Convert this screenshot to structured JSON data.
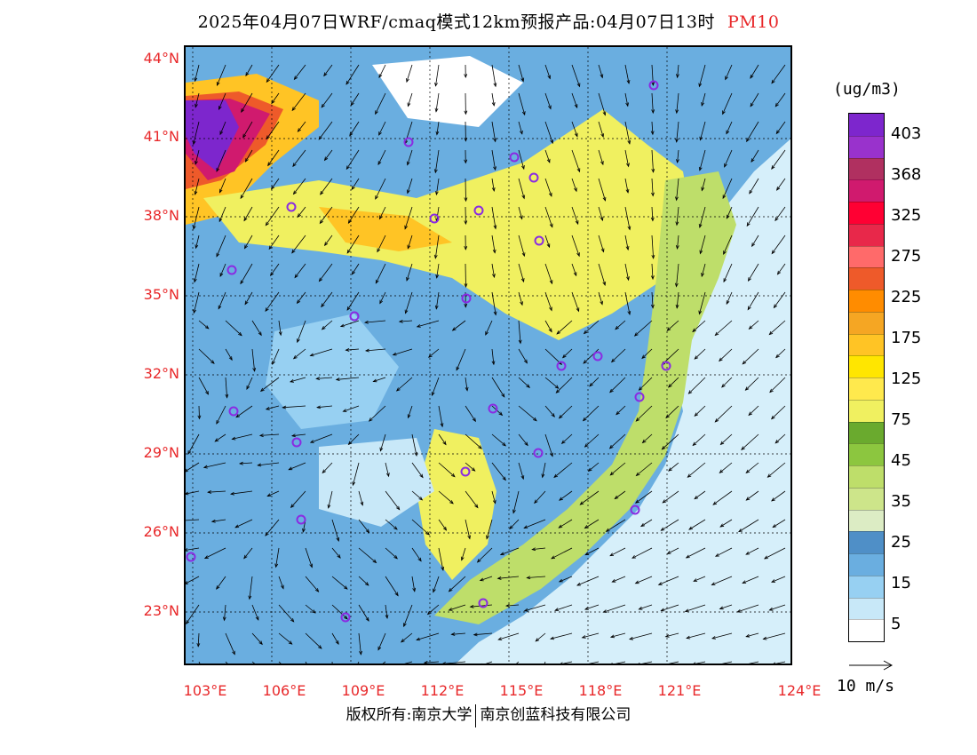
{
  "title": {
    "main": "2025年04月07日WRF/cmaq模式12km预报产品:04月07日13时",
    "variable": "PM10"
  },
  "map": {
    "lat_labels": [
      "44°N",
      "41°N",
      "38°N",
      "35°N",
      "32°N",
      "29°N",
      "26°N",
      "23°N"
    ],
    "lon_labels": [
      "103°E",
      "106°E",
      "109°E",
      "112°E",
      "115°E",
      "118°E",
      "121°E",
      "124°E"
    ],
    "extent": {
      "lon_min": 103,
      "lon_max": 124,
      "lat_min": 21.9,
      "lat_max": 44.4
    },
    "sea_color": "#d6effa",
    "city_marker_color": "#8a2be2"
  },
  "colorbar": {
    "unit": "(ug/m3)",
    "labels": [
      "403",
      "368",
      "325",
      "275",
      "225",
      "175",
      "125",
      "75",
      "45",
      "35",
      "25",
      "15",
      "5"
    ],
    "colors": [
      "#7d26cd",
      "#9932cc",
      "#b03060",
      "#d01a6e",
      "#ff0033",
      "#e8284a",
      "#ff6a6a",
      "#ee5a2a",
      "#ff8c00",
      "#f5a623",
      "#ffc425",
      "#ffe600",
      "#ffe94d",
      "#f0f060",
      "#6aaa2e",
      "#8cc63f",
      "#bede6a",
      "#cde58a",
      "#dcecc4",
      "#4f8fc7",
      "#6aaee0",
      "#97d0f2",
      "#c8e8f8",
      "#ffffff"
    ]
  },
  "wind_reference": {
    "label": "10 m/s"
  },
  "footer": {
    "left": "版权所有:南京大学",
    "right": "南京创蓝科技有限公司"
  }
}
